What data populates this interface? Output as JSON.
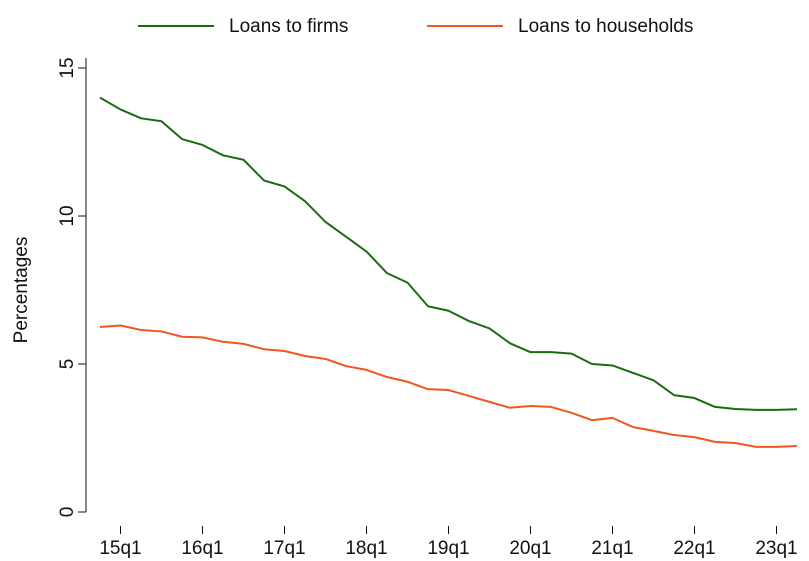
{
  "chart_data": {
    "type": "line",
    "y_label": "Percentages",
    "categories": [
      null,
      "15q1",
      null,
      null,
      null,
      "16q1",
      null,
      null,
      null,
      "17q1",
      null,
      null,
      null,
      "18q1",
      null,
      null,
      null,
      "19q1",
      null,
      null,
      null,
      "20q1",
      null,
      null,
      null,
      "21q1",
      null,
      null,
      null,
      "22q1",
      null,
      null,
      null,
      "23q1",
      null
    ],
    "series": [
      {
        "name": "Loans to firms",
        "color": "#1b6b12",
        "values": [
          14.0,
          13.6,
          13.3,
          13.2,
          12.6,
          12.4,
          12.05,
          11.9,
          11.2,
          11.0,
          10.5,
          9.8,
          9.3,
          8.8,
          8.07,
          7.75,
          6.95,
          6.8,
          6.45,
          6.2,
          5.7,
          5.4,
          5.4,
          5.35,
          5.0,
          4.95,
          4.7,
          4.45,
          3.95,
          3.85,
          3.55,
          3.48,
          3.45,
          3.45,
          3.47
        ]
      },
      {
        "name": "Loans to households",
        "color": "#f0561e",
        "values": [
          6.25,
          6.3,
          6.15,
          6.1,
          5.92,
          5.9,
          5.75,
          5.68,
          5.5,
          5.44,
          5.27,
          5.17,
          4.93,
          4.8,
          4.56,
          4.4,
          4.15,
          4.12,
          3.92,
          3.72,
          3.52,
          3.58,
          3.55,
          3.35,
          3.1,
          3.18,
          2.87,
          2.74,
          2.6,
          2.53,
          2.37,
          2.33,
          2.2,
          2.2,
          2.23
        ]
      }
    ],
    "ylim": [
      0,
      15
    ],
    "yticks": [
      0,
      5,
      10,
      15
    ],
    "legend": "top"
  }
}
